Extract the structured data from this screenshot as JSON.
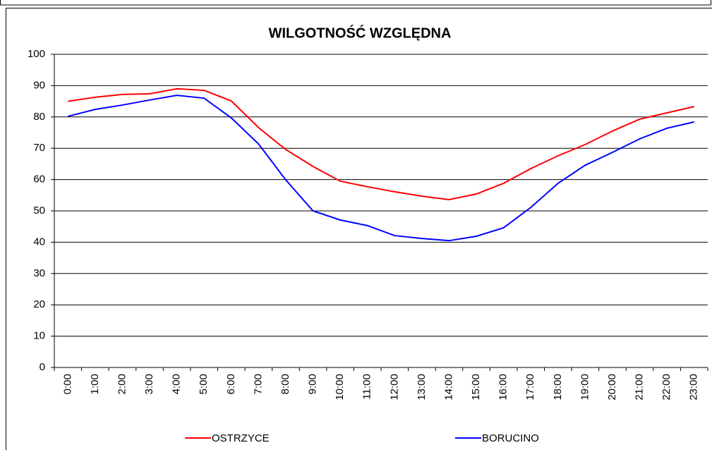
{
  "chart_data": {
    "type": "line",
    "title": "WILGOTNOŚĆ WZGLĘDNA",
    "categories": [
      "0:00",
      "1:00",
      "2:00",
      "3:00",
      "4:00",
      "5:00",
      "6:00",
      "7:00",
      "8:00",
      "9:00",
      "10:00",
      "11:00",
      "12:00",
      "13:00",
      "14:00",
      "15:00",
      "16:00",
      "17:00",
      "18:00",
      "19:00",
      "20:00",
      "21:00",
      "22:00",
      "23:00"
    ],
    "series": [
      {
        "name": "OSTRZYCE",
        "color": "#ff0000",
        "values": [
          85,
          86.3,
          87.2,
          87.4,
          89,
          88.5,
          85.1,
          76.6,
          69.6,
          64.2,
          59.5,
          57.7,
          56.1,
          54.7,
          53.6,
          55.4,
          58.8,
          63.5,
          67.6,
          71.2,
          75.5,
          79.3,
          81.3,
          83.3
        ]
      },
      {
        "name": "BORUCINO",
        "color": "#0000ff",
        "values": [
          80.2,
          82.4,
          83.8,
          85.4,
          86.9,
          86,
          79.7,
          71.4,
          59.9,
          50,
          47.1,
          45.3,
          42.1,
          41.2,
          40.5,
          41.9,
          44.6,
          51.1,
          58.8,
          64.6,
          68.7,
          73,
          76.4,
          78.4
        ]
      }
    ],
    "ylim": [
      0,
      100
    ],
    "yticks": [
      0,
      10,
      20,
      30,
      40,
      50,
      60,
      70,
      80,
      90,
      100
    ],
    "grid": true
  }
}
